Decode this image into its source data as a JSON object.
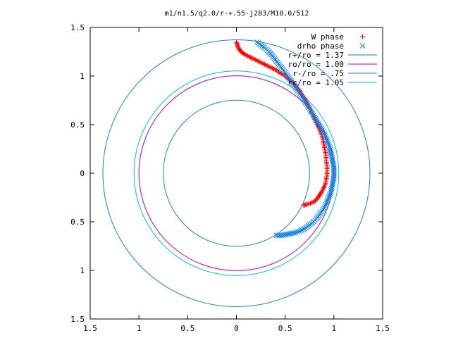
{
  "chart_data": {
    "type": "scatter",
    "title": "m1/n1.5/q2.0/r-+.55-j283/M10.0/512",
    "xlabel": "",
    "ylabel": "",
    "xlim": [
      -1.5,
      1.5
    ],
    "ylim": [
      -1.5,
      1.5
    ],
    "x_ticks": [
      -1.5,
      -1,
      -0.5,
      0,
      0.5,
      1,
      1.5
    ],
    "y_ticks": [
      -1.5,
      -1,
      -0.5,
      0,
      0.5,
      1,
      1.5
    ],
    "x_tick_labels": [
      "1.5",
      "1",
      "0.5",
      "0",
      "0.5",
      "1",
      "1.5"
    ],
    "y_tick_labels": [
      "1.5",
      "1",
      "0.5",
      "0",
      "0.5",
      "1",
      "1.5"
    ],
    "grid": false,
    "legend_position": "top-right",
    "series": [
      {
        "name": "W phase",
        "kind": "points",
        "marker": "+",
        "color": "#ff0000",
        "points": [
          [
            0.0,
            1.35
          ],
          [
            0.01,
            1.32
          ],
          [
            0.02,
            1.29
          ],
          [
            0.04,
            1.26
          ],
          [
            0.06,
            1.24
          ],
          [
            0.09,
            1.22
          ],
          [
            0.13,
            1.2
          ],
          [
            0.17,
            1.18
          ],
          [
            0.21,
            1.16
          ],
          [
            0.25,
            1.14
          ],
          [
            0.29,
            1.12
          ],
          [
            0.33,
            1.1
          ],
          [
            0.37,
            1.08
          ],
          [
            0.41,
            1.06
          ],
          [
            0.45,
            1.03
          ],
          [
            0.49,
            1.01
          ],
          [
            0.52,
            0.98
          ],
          [
            0.56,
            0.95
          ],
          [
            0.59,
            0.92
          ],
          [
            0.62,
            0.88
          ],
          [
            0.65,
            0.85
          ],
          [
            0.67,
            0.81
          ],
          [
            0.7,
            0.77
          ],
          [
            0.72,
            0.73
          ],
          [
            0.74,
            0.69
          ],
          [
            0.76,
            0.65
          ],
          [
            0.78,
            0.61
          ],
          [
            0.8,
            0.57
          ],
          [
            0.82,
            0.52
          ],
          [
            0.84,
            0.48
          ],
          [
            0.86,
            0.43
          ],
          [
            0.88,
            0.38
          ],
          [
            0.89,
            0.33
          ],
          [
            0.9,
            0.28
          ],
          [
            0.91,
            0.23
          ],
          [
            0.92,
            0.18
          ],
          [
            0.92,
            0.13
          ],
          [
            0.93,
            0.08
          ],
          [
            0.93,
            0.03
          ],
          [
            0.93,
            -0.02
          ],
          [
            0.92,
            -0.07
          ],
          [
            0.91,
            -0.12
          ],
          [
            0.89,
            -0.16
          ],
          [
            0.87,
            -0.2
          ],
          [
            0.85,
            -0.23
          ],
          [
            0.83,
            -0.26
          ],
          [
            0.8,
            -0.29
          ],
          [
            0.76,
            -0.31
          ],
          [
            0.72,
            -0.32
          ],
          [
            0.69,
            -0.33
          ]
        ]
      },
      {
        "name": "drho phase",
        "kind": "points",
        "marker": "x",
        "color": "#0a7fe0",
        "points": [
          [
            0.21,
            1.35
          ],
          [
            0.25,
            1.32
          ],
          [
            0.29,
            1.29
          ],
          [
            0.33,
            1.25
          ],
          [
            0.36,
            1.22
          ],
          [
            0.39,
            1.18
          ],
          [
            0.42,
            1.14
          ],
          [
            0.45,
            1.1
          ],
          [
            0.48,
            1.06
          ],
          [
            0.51,
            1.02
          ],
          [
            0.54,
            0.98
          ],
          [
            0.57,
            0.94
          ],
          [
            0.6,
            0.89
          ],
          [
            0.63,
            0.85
          ],
          [
            0.66,
            0.8
          ],
          [
            0.69,
            0.76
          ],
          [
            0.72,
            0.71
          ],
          [
            0.75,
            0.66
          ],
          [
            0.78,
            0.61
          ],
          [
            0.81,
            0.56
          ],
          [
            0.84,
            0.51
          ],
          [
            0.87,
            0.46
          ],
          [
            0.9,
            0.41
          ],
          [
            0.92,
            0.36
          ],
          [
            0.94,
            0.31
          ],
          [
            0.96,
            0.26
          ],
          [
            0.97,
            0.21
          ],
          [
            0.98,
            0.16
          ],
          [
            0.99,
            0.11
          ],
          [
            1.0,
            0.06
          ],
          [
            1.0,
            0.01
          ],
          [
            1.0,
            -0.04
          ],
          [
            0.99,
            -0.09
          ],
          [
            0.98,
            -0.14
          ],
          [
            0.97,
            -0.19
          ],
          [
            0.95,
            -0.24
          ],
          [
            0.93,
            -0.29
          ],
          [
            0.91,
            -0.34
          ],
          [
            0.88,
            -0.39
          ],
          [
            0.85,
            -0.43
          ],
          [
            0.82,
            -0.47
          ],
          [
            0.78,
            -0.51
          ],
          [
            0.74,
            -0.54
          ],
          [
            0.7,
            -0.57
          ],
          [
            0.66,
            -0.59
          ],
          [
            0.61,
            -0.61
          ],
          [
            0.56,
            -0.62
          ],
          [
            0.51,
            -0.63
          ],
          [
            0.46,
            -0.64
          ],
          [
            0.41,
            -0.64
          ]
        ]
      },
      {
        "name": "r+/ro = 1.37",
        "kind": "circle",
        "radius": 1.37,
        "color": "#1a7fd0"
      },
      {
        "name": "ro/ro = 1.00",
        "kind": "circle",
        "radius": 1.0,
        "color": "#b000b0"
      },
      {
        "name": "r-/ro = .75",
        "kind": "circle",
        "radius": 0.75,
        "color": "#1a7fd0"
      },
      {
        "name": "rc/ro = 1.05",
        "kind": "circle",
        "radius": 1.05,
        "color": "#00c0c0"
      }
    ]
  }
}
